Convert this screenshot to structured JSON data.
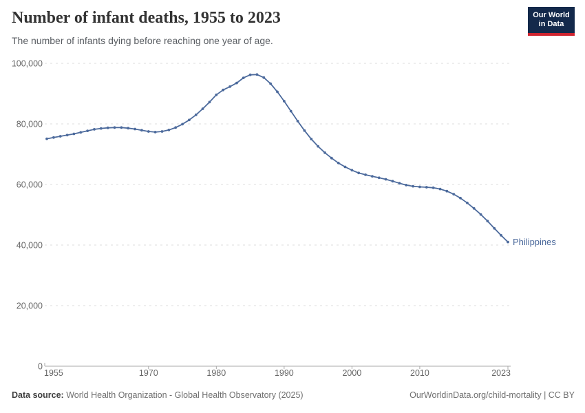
{
  "header": {
    "title": "Number of infant deaths, 1955 to 2023",
    "subtitle": "The number of infants dying before reaching one year of age.",
    "logo_line1": "Our World",
    "logo_line2": "in Data",
    "logo_bg_color": "#13294b",
    "logo_accent_color": "#cf2430"
  },
  "chart_data": {
    "type": "line",
    "title": "Number of infant deaths, 1955 to 2023",
    "xlabel": "",
    "ylabel": "",
    "xlim": [
      1955,
      2023
    ],
    "ylim": [
      0,
      100000
    ],
    "grid": "horizontal-dashed",
    "legend": "end-of-line-label",
    "xticks": {
      "values": [
        1955,
        1970,
        1980,
        1990,
        2000,
        2010,
        2023
      ],
      "labels": [
        "1955",
        "1970",
        "1980",
        "1990",
        "2000",
        "2010",
        "2023"
      ]
    },
    "yticks": {
      "values": [
        0,
        20000,
        40000,
        60000,
        80000,
        100000
      ],
      "labels": [
        "0",
        "20,000",
        "40,000",
        "60,000",
        "80,000",
        "100,000"
      ]
    },
    "series": [
      {
        "name": "Philippines",
        "color": "#4C6A9C",
        "marker": "dot",
        "x": [
          1955,
          1956,
          1957,
          1958,
          1959,
          1960,
          1961,
          1962,
          1963,
          1964,
          1965,
          1966,
          1967,
          1968,
          1969,
          1970,
          1971,
          1972,
          1973,
          1974,
          1975,
          1976,
          1977,
          1978,
          1979,
          1980,
          1981,
          1982,
          1983,
          1984,
          1985,
          1986,
          1987,
          1988,
          1989,
          1990,
          1991,
          1992,
          1993,
          1994,
          1995,
          1996,
          1997,
          1998,
          1999,
          2000,
          2001,
          2002,
          2003,
          2004,
          2005,
          2006,
          2007,
          2008,
          2009,
          2010,
          2011,
          2012,
          2013,
          2014,
          2015,
          2016,
          2017,
          2018,
          2019,
          2020,
          2021,
          2022,
          2023
        ],
        "values": [
          75100,
          75500,
          75900,
          76300,
          76700,
          77200,
          77700,
          78200,
          78500,
          78700,
          78800,
          78800,
          78600,
          78300,
          77900,
          77500,
          77300,
          77500,
          78000,
          78800,
          79900,
          81300,
          83000,
          85000,
          87200,
          89600,
          91200,
          92300,
          93500,
          95200,
          96200,
          96300,
          95300,
          93300,
          90600,
          87500,
          84200,
          80900,
          77800,
          75000,
          72600,
          70500,
          68700,
          67100,
          65800,
          64700,
          63800,
          63200,
          62700,
          62200,
          61700,
          61100,
          60400,
          59800,
          59400,
          59200,
          59100,
          58900,
          58500,
          57800,
          56800,
          55500,
          53900,
          52100,
          50100,
          47900,
          45500,
          43200,
          41000
        ]
      }
    ]
  },
  "footer": {
    "source_label": "Data source:",
    "source_value": " World Health Organization - Global Health Observatory (2025)",
    "attribution": "OurWorldinData.org/child-mortality | CC BY"
  }
}
